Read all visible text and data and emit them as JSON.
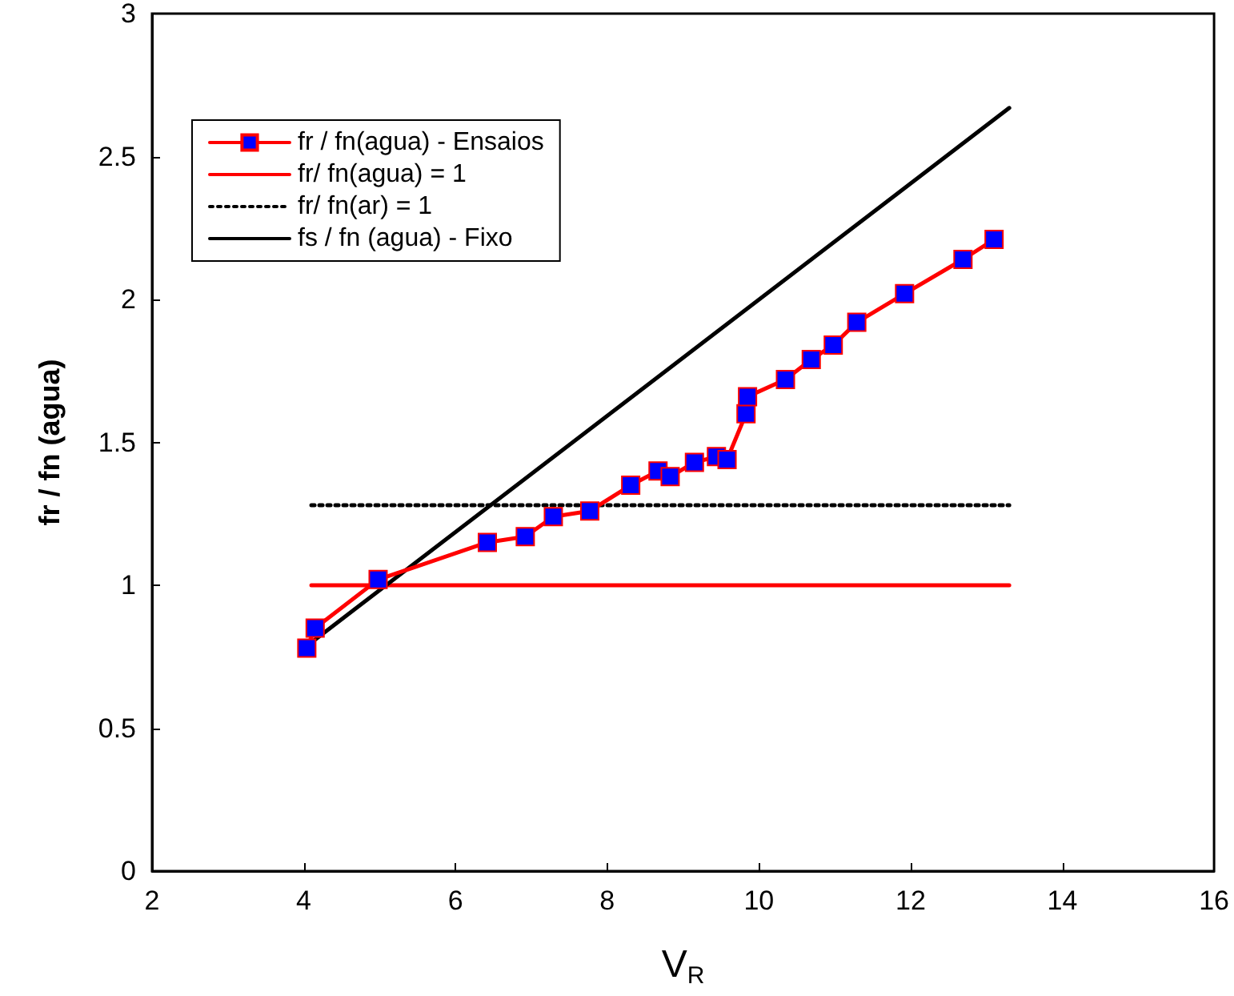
{
  "chart_data": {
    "type": "line",
    "xlabel": "V$_{R}$",
    "ylabel": "fr / fn (agua)",
    "xlim": [
      2,
      16
    ],
    "xticks": [
      2,
      4,
      6,
      8,
      10,
      12,
      14,
      16
    ],
    "ylim": [
      0,
      3
    ],
    "yticks": [
      0,
      0.5,
      1,
      1.5,
      2,
      2.5,
      3
    ],
    "grid": false,
    "legend": "top left",
    "series": [
      {
        "name": "fr / fn(agua) - Ensaios",
        "color": "#ff0000",
        "marker": "square",
        "line_style": "solid",
        "x": [
          4.04,
          4.15,
          4.98,
          6.42,
          6.92,
          7.29,
          7.77,
          8.31,
          8.67,
          8.83,
          9.15,
          9.44,
          9.58,
          9.83,
          9.85,
          10.35,
          10.69,
          10.98,
          11.29,
          11.92,
          12.69,
          13.1
        ],
        "values": [
          0.78,
          0.85,
          1.02,
          1.15,
          1.17,
          1.24,
          1.26,
          1.35,
          1.4,
          1.38,
          1.43,
          1.45,
          1.44,
          1.6,
          1.66,
          1.72,
          1.79,
          1.84,
          1.92,
          2.02,
          2.14,
          2.21
        ]
      },
      {
        "name": "fr/ fn(agua) = 1",
        "color": "#ff0000",
        "marker": "none",
        "line_style": "solid",
        "x": [
          4.1,
          13.3
        ],
        "values": [
          1,
          1
        ]
      },
      {
        "name": "fr/ fn(ar) = 1",
        "color": "#000000",
        "marker": "none",
        "line_style": "dotted",
        "x": [
          4.1,
          13.3
        ],
        "values": [
          1.28,
          1.28
        ]
      },
      {
        "name": "fs / fn (agua) - Fixo",
        "color": "#000000",
        "marker": "none",
        "line_style": "solid",
        "x": [
          4.1,
          13.3
        ],
        "values": [
          0.8,
          2.67
        ]
      }
    ]
  }
}
